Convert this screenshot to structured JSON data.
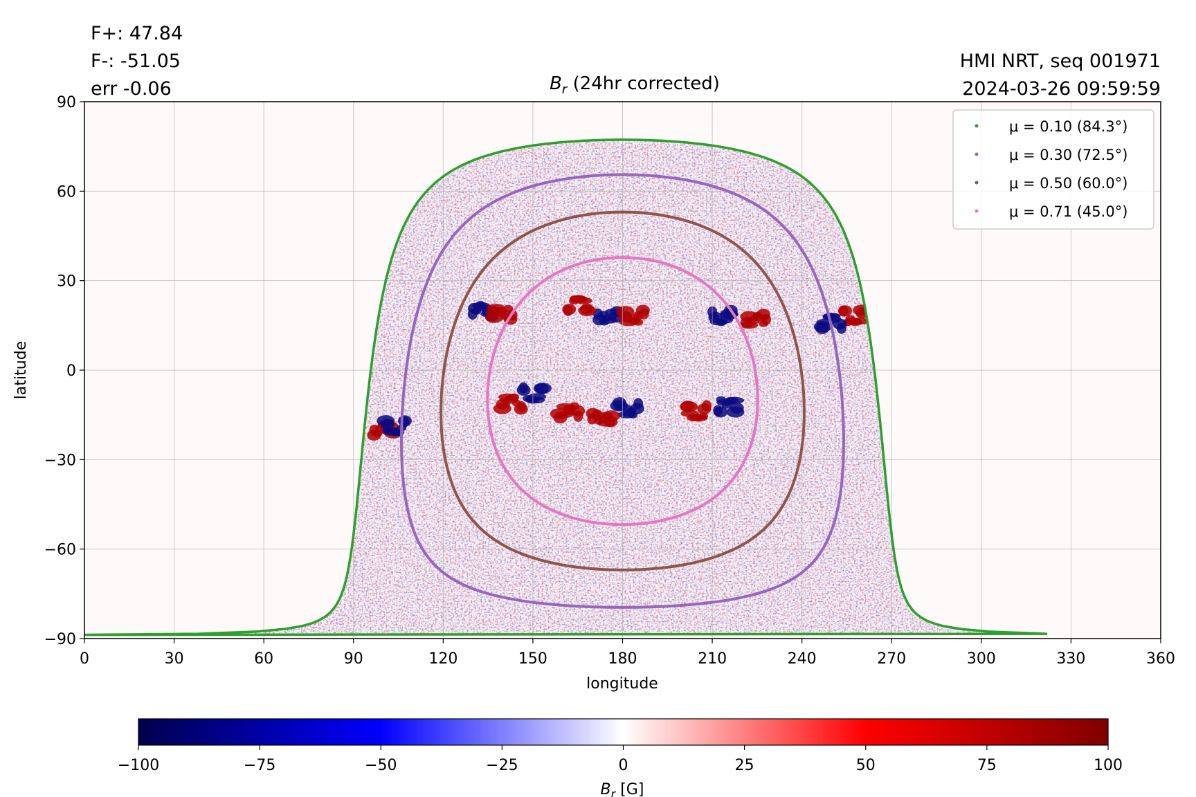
{
  "header": {
    "stats": [
      "F+: 47.84",
      "F-: -51.05",
      "err -0.06"
    ],
    "source": "HMI NRT, seq 001971",
    "timestamp": "2024-03-26 09:59:59"
  },
  "chart_data": {
    "type": "heatmap",
    "title_var": "B",
    "title_sub": "r",
    "title_rest": " (24hr corrected)",
    "xlabel": "longitude",
    "ylabel": "latitude",
    "xlim": [
      0,
      360
    ],
    "ylim": [
      -90,
      90
    ],
    "xticks": [
      0,
      30,
      60,
      90,
      120,
      150,
      180,
      210,
      240,
      270,
      300,
      330,
      360
    ],
    "yticks": [
      90,
      60,
      30,
      0,
      -30,
      -60,
      -90
    ],
    "ytick_labels": [
      "90",
      "60",
      "30",
      "0",
      "−30",
      "−60",
      "−90"
    ],
    "grid": true,
    "legend_position": "top-right",
    "legend": [
      {
        "label": "μ = 0.10 (84.3°)",
        "color": "#2ca02c",
        "mu": 0.1,
        "angle_deg": 84.3
      },
      {
        "label": "μ = 0.30 (72.5°)",
        "color": "#9467bd",
        "mu": 0.3,
        "angle_deg": 72.5
      },
      {
        "label": "μ = 0.50 (60.0°)",
        "color": "#8c564b",
        "mu": 0.5,
        "angle_deg": 60.0
      },
      {
        "label": "μ = 0.71 (45.0°)",
        "color": "#e377c2",
        "mu": 0.71,
        "angle_deg": 45.0
      }
    ],
    "disk_center": {
      "longitude": 180,
      "latitude": -7
    },
    "features": [
      {
        "longitude": 213,
        "latitude": 18,
        "polarity": "negative"
      },
      {
        "longitude": 225,
        "latitude": 17,
        "polarity": "positive"
      },
      {
        "longitude": 215,
        "latitude": -12,
        "polarity": "negative"
      },
      {
        "longitude": 205,
        "latitude": -14,
        "polarity": "positive"
      },
      {
        "longitude": 133,
        "latitude": 20,
        "polarity": "negative"
      },
      {
        "longitude": 140,
        "latitude": 19,
        "polarity": "positive"
      },
      {
        "longitude": 257,
        "latitude": 18,
        "polarity": "positive"
      },
      {
        "longitude": 250,
        "latitude": 16,
        "polarity": "negative"
      },
      {
        "longitude": 175,
        "latitude": 18,
        "polarity": "negative"
      },
      {
        "longitude": 184,
        "latitude": 18,
        "polarity": "positive"
      },
      {
        "longitude": 165,
        "latitude": 22,
        "polarity": "positive"
      },
      {
        "longitude": 182,
        "latitude": -13,
        "polarity": "negative"
      },
      {
        "longitude": 173,
        "latitude": -16,
        "polarity": "positive"
      },
      {
        "longitude": 143,
        "latitude": -11,
        "polarity": "positive"
      },
      {
        "longitude": 150,
        "latitude": -8,
        "polarity": "negative"
      },
      {
        "longitude": 162,
        "latitude": -14,
        "polarity": "positive"
      },
      {
        "longitude": 100,
        "latitude": -20,
        "polarity": "positive"
      },
      {
        "longitude": 104,
        "latitude": -19,
        "polarity": "negative"
      }
    ],
    "colorbar": {
      "min": -100,
      "max": 100,
      "ticks": [
        -100,
        -75,
        -50,
        -25,
        0,
        25,
        50,
        75,
        100
      ],
      "tick_labels": [
        "−100",
        "−75",
        "−50",
        "−25",
        "0",
        "25",
        "50",
        "75",
        "100"
      ],
      "label_var": "B",
      "label_sub": "r",
      "label_unit": " [G]",
      "colormap": "seismic",
      "colors": [
        "#00004c",
        "#0000ff",
        "#ffffff",
        "#ff0000",
        "#800000"
      ]
    }
  }
}
